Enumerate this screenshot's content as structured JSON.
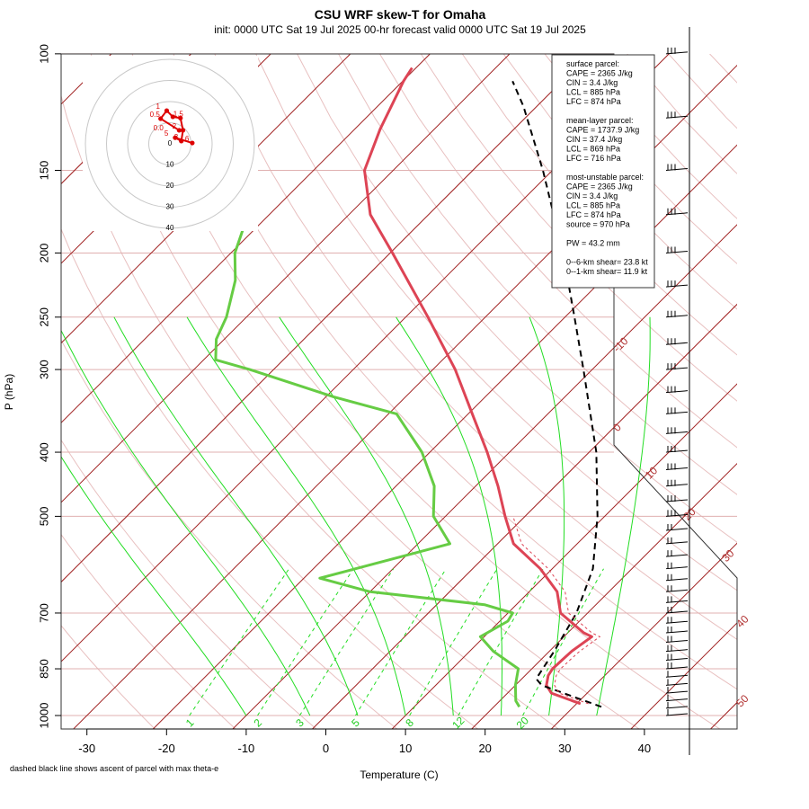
{
  "header": {
    "title": "CSU WRF skew-T for Omaha",
    "subtitle": "init: 0000 UTC Sat 19 Jul 2025     00-hr forecast valid 0000 UTC Sat 19 Jul 2025"
  },
  "chart_data": {
    "type": "line",
    "title": "CSU WRF skew-T for Omaha",
    "xlabel": "Temperature (C)",
    "ylabel": "P (hPa)",
    "xlim": [
      -33,
      45
    ],
    "ylim": [
      1000,
      100
    ],
    "y_scale": "log",
    "grid": true,
    "x_ticks": [
      -30,
      -20,
      -10,
      0,
      10,
      20,
      30,
      40
    ],
    "x_tick_labels": [
      "-30",
      "-20",
      "-10",
      "0",
      "10",
      "20",
      "30",
      "40"
    ],
    "y_ticks": [
      1000,
      850,
      700,
      500,
      400,
      300,
      250,
      200,
      150,
      100
    ],
    "y_tick_labels": [
      "1000",
      "850",
      "700",
      "500",
      "400",
      "300",
      "250",
      "200",
      "150",
      "100"
    ],
    "isotherm_labels": [
      "-10",
      "0",
      "10",
      "20",
      "30",
      "40",
      "50"
    ],
    "mixing_ratio_labels": [
      "1",
      "2",
      "3",
      "5",
      "8",
      "12",
      "20"
    ],
    "colors": {
      "temperature": "#dd4455",
      "dewpoint": "#66cc44",
      "isotherm": "#a02020",
      "mixing_ratio": "#22dd22",
      "dry_adiabat": "#e8c0c0",
      "parcel": "#000000",
      "hodograph": "#dd0000"
    },
    "series": [
      {
        "name": "temperature",
        "points": [
          {
            "p": 960,
            "t": 30.5
          },
          {
            "p": 925,
            "t": 25.5
          },
          {
            "p": 900,
            "t": 23.9
          },
          {
            "p": 870,
            "t": 22.9
          },
          {
            "p": 850,
            "t": 22.6
          },
          {
            "p": 820,
            "t": 22.7
          },
          {
            "p": 800,
            "t": 22.8
          },
          {
            "p": 760,
            "t": 23.5
          },
          {
            "p": 750,
            "t": 22.0
          },
          {
            "p": 700,
            "t": 16.6
          },
          {
            "p": 650,
            "t": 13.5
          },
          {
            "p": 600,
            "t": 8.5
          },
          {
            "p": 550,
            "t": 2.0
          },
          {
            "p": 500,
            "t": -2.5
          },
          {
            "p": 450,
            "t": -7.2
          },
          {
            "p": 400,
            "t": -12.8
          },
          {
            "p": 350,
            "t": -19.5
          },
          {
            "p": 300,
            "t": -27.2
          },
          {
            "p": 250,
            "t": -37.2
          },
          {
            "p": 200,
            "t": -49.7
          },
          {
            "p": 175,
            "t": -57.3
          },
          {
            "p": 150,
            "t": -63.6
          },
          {
            "p": 130,
            "t": -66.8
          },
          {
            "p": 110,
            "t": -69.9
          },
          {
            "p": 105,
            "t": -70.5
          }
        ]
      },
      {
        "name": "dewpoint",
        "points": [
          {
            "p": 970,
            "t": 23.2
          },
          {
            "p": 950,
            "t": 22.0
          },
          {
            "p": 900,
            "t": 20.0
          },
          {
            "p": 850,
            "t": 18.3
          },
          {
            "p": 800,
            "t": 13.0
          },
          {
            "p": 760,
            "t": 9.5
          },
          {
            "p": 720,
            "t": 11.0
          },
          {
            "p": 700,
            "t": 10.6
          },
          {
            "p": 680,
            "t": 6.0
          },
          {
            "p": 650,
            "t": -10.0
          },
          {
            "p": 620,
            "t": -18.0
          },
          {
            "p": 550,
            "t": -6.0
          },
          {
            "p": 500,
            "t": -11.5
          },
          {
            "p": 450,
            "t": -15.2
          },
          {
            "p": 400,
            "t": -21.0
          },
          {
            "p": 350,
            "t": -29.0
          },
          {
            "p": 330,
            "t": -39.0
          },
          {
            "p": 300,
            "t": -53.0
          },
          {
            "p": 290,
            "t": -58.5
          },
          {
            "p": 270,
            "t": -61.0
          },
          {
            "p": 250,
            "t": -62.5
          },
          {
            "p": 220,
            "t": -66.0
          },
          {
            "p": 200,
            "t": -69.5
          },
          {
            "p": 180,
            "t": -72.0
          }
        ]
      },
      {
        "name": "parcel",
        "points": [
          {
            "p": 970,
            "t": 33.5
          },
          {
            "p": 900,
            "t": 23.3
          },
          {
            "p": 880,
            "t": 21.8
          },
          {
            "p": 800,
            "t": 20.6
          },
          {
            "p": 700,
            "t": 18.6
          },
          {
            "p": 600,
            "t": 15.1
          },
          {
            "p": 500,
            "t": 9.1
          },
          {
            "p": 400,
            "t": 0.9
          },
          {
            "p": 300,
            "t": -11.1
          },
          {
            "p": 250,
            "t": -18.8
          },
          {
            "p": 200,
            "t": -28.3
          },
          {
            "p": 150,
            "t": -41.2
          },
          {
            "p": 120,
            "t": -51.7
          },
          {
            "p": 110,
            "t": -56.2
          }
        ]
      }
    ],
    "hodograph": {
      "ring_labels": [
        "0",
        "10",
        "20",
        "30",
        "40"
      ],
      "point_labels": [
        "0.5",
        "0.0",
        "1",
        "1.5",
        "2",
        "3",
        "5",
        "6"
      ]
    },
    "wind_barbs": {
      "levels_hpa": [
        1000,
        975,
        950,
        925,
        900,
        875,
        850,
        825,
        800,
        775,
        750,
        725,
        700,
        675,
        650,
        625,
        600,
        575,
        550,
        525,
        500,
        475,
        450,
        425,
        400,
        375,
        350,
        325,
        300,
        275,
        250,
        225,
        200,
        175,
        150,
        125,
        100
      ]
    }
  },
  "info_box": {
    "lines": [
      "surface parcel:",
      "CAPE = 2365 J/kg",
      "CIN = 3.4 J/kg",
      "LCL = 885 hPa",
      "LFC = 874 hPa",
      "",
      "mean-layer parcel:",
      "CAPE = 1737.9 J/kg",
      "CIN = 37.4 J/kg",
      "LCL = 869 hPa",
      "LFC = 716 hPa",
      "",
      "most-unstable parcel:",
      "CAPE = 2365 J/kg",
      "CIN = 3.4 J/kg",
      "LCL = 885 hPa",
      "LFC = 874 hPa",
      "source = 970 hPa",
      "",
      "PW =  43.2 mm",
      "",
      "0--6-km shear= 23.8 kt",
      "0--1-km shear= 11.9 kt"
    ]
  },
  "footnote": "dashed black line shows ascent of parcel with max theta-e"
}
